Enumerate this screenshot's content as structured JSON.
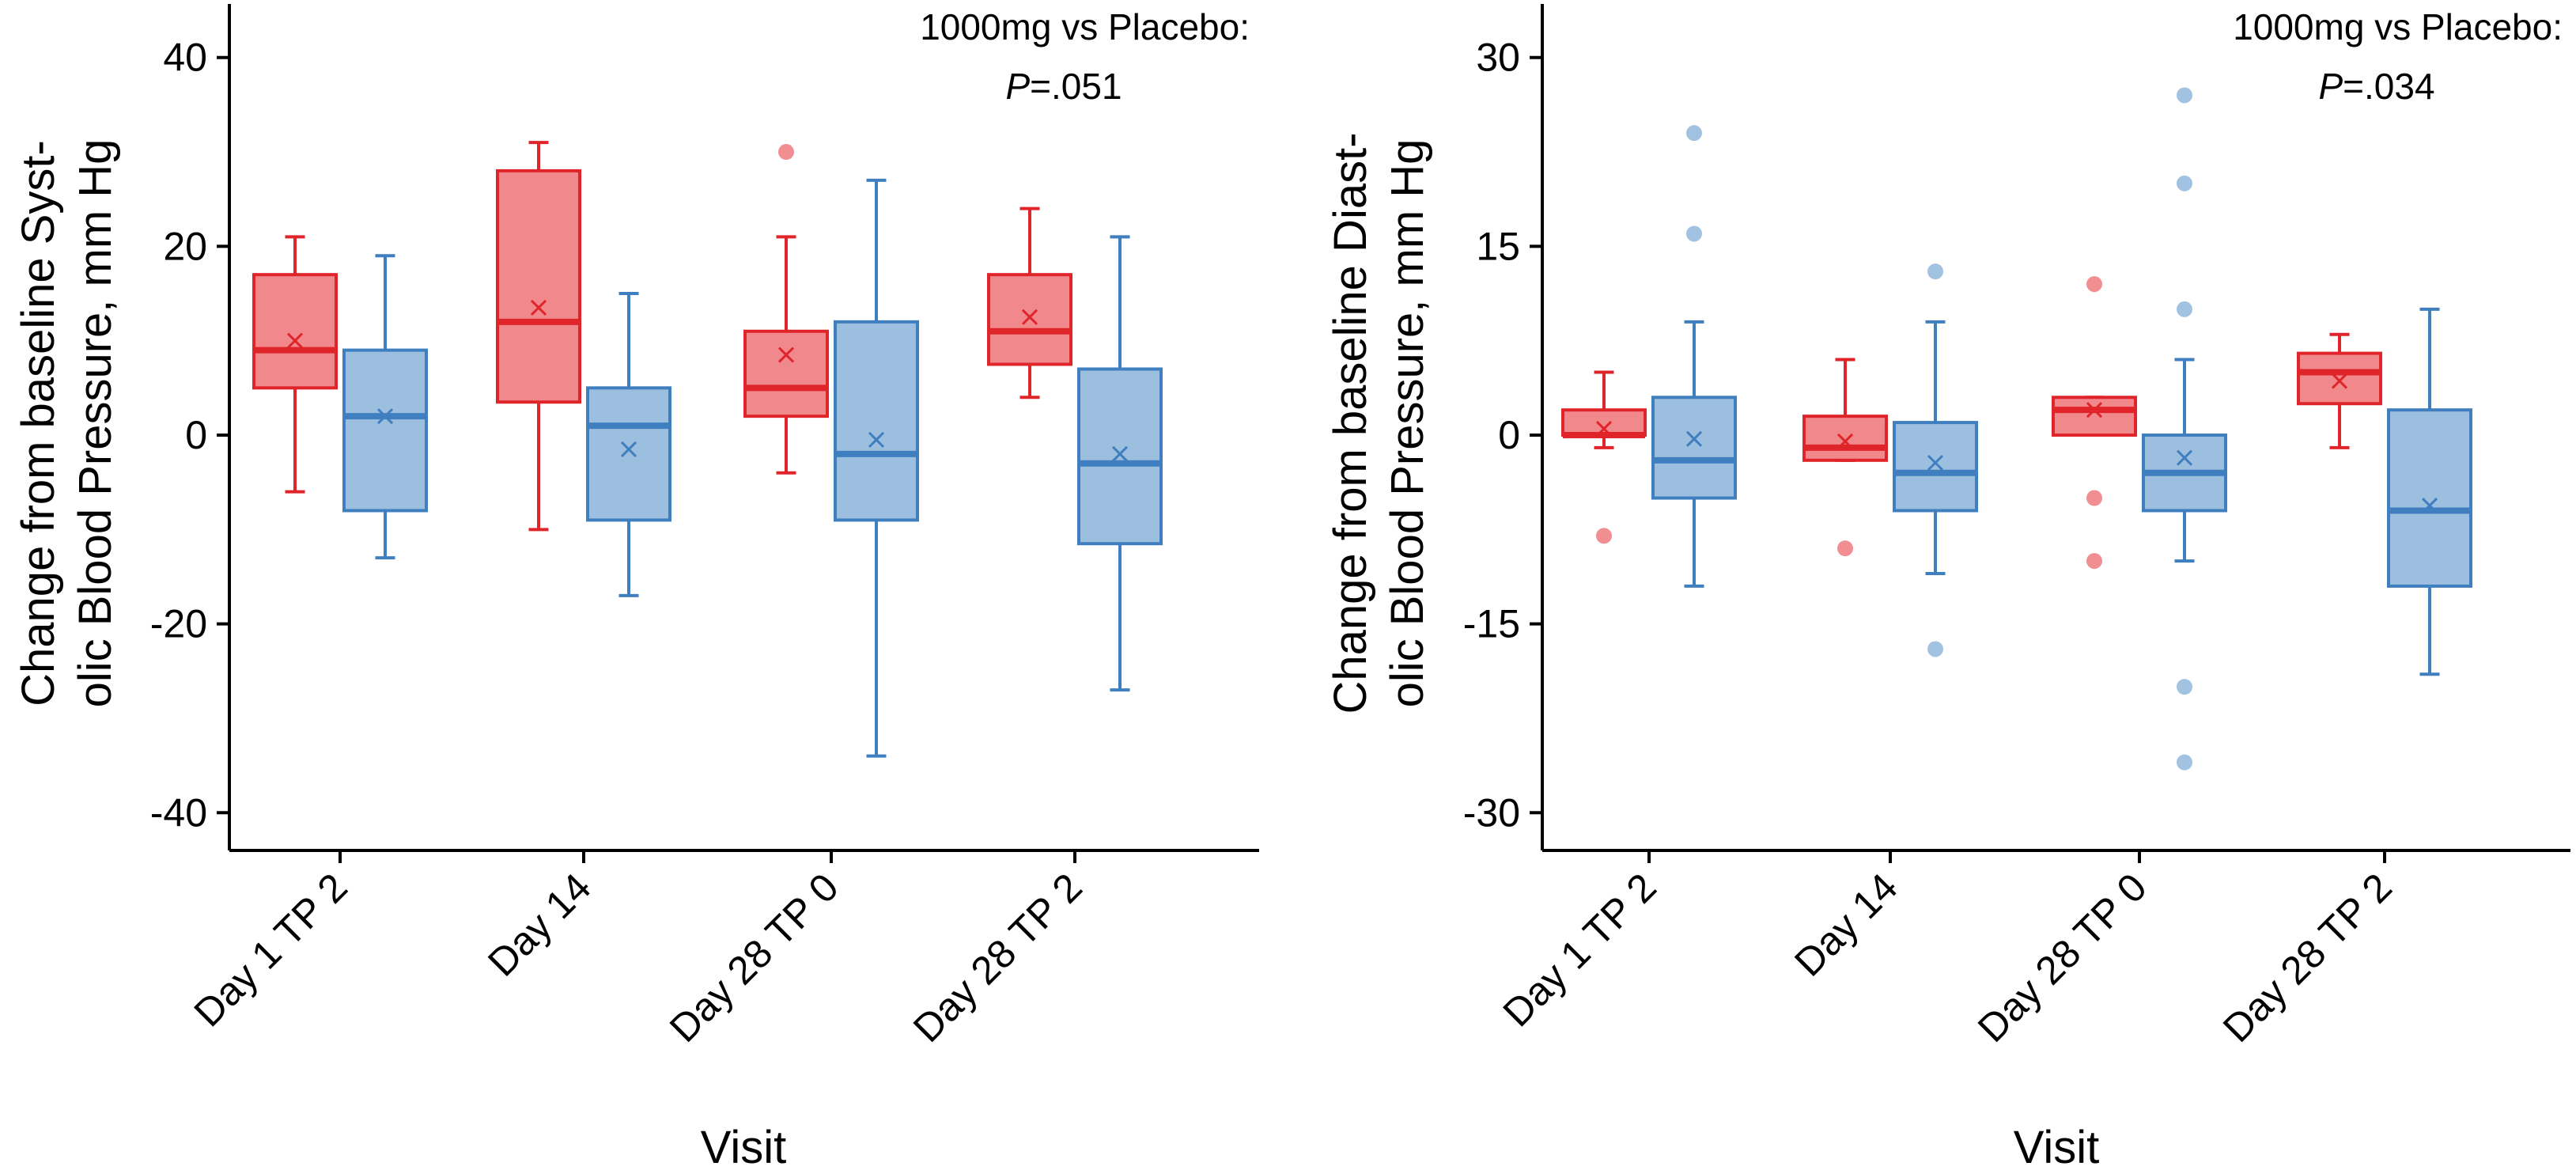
{
  "chart_data": [
    {
      "type": "box",
      "xlabel": "Visit",
      "ylabel_lines": [
        "Change from baseline Syst-",
        "olic Blood Pressure, mm Hg"
      ],
      "ylim": [
        -44,
        44
      ],
      "yticks": [
        40,
        20,
        0,
        -20,
        -40
      ],
      "ytick_labels": [
        "40",
        "20",
        "0",
        "-20",
        "-40"
      ],
      "categories": [
        "Day 1 TP 2",
        "Day 14",
        "Day 28 TP 0",
        "Day 28 TP 2"
      ],
      "annotation": {
        "line1": "1000mg vs Placebo:",
        "p_prefix": "P",
        "p_value": "=.051"
      },
      "colors": {
        "red_fill": "#f0888c",
        "red_line": "#e0252a",
        "blue_fill": "#9dbfdf",
        "blue_line": "#3f7fbf"
      },
      "series": [
        {
          "color": "red",
          "boxes": [
            {
              "q1": 5,
              "median": 9,
              "q3": 17,
              "whisker_low": -6,
              "whisker_high": 21,
              "mean": 10,
              "outliers": []
            },
            {
              "q1": 3.5,
              "median": 12,
              "q3": 28,
              "whisker_low": -10,
              "whisker_high": 31,
              "mean": 13.5,
              "outliers": []
            },
            {
              "q1": 2,
              "median": 5,
              "q3": 11,
              "whisker_low": -4,
              "whisker_high": 21,
              "mean": 8.5,
              "outliers": [
                30
              ]
            },
            {
              "q1": 7.5,
              "median": 11,
              "q3": 17,
              "whisker_low": 4,
              "whisker_high": 24,
              "mean": 12.5,
              "outliers": []
            }
          ]
        },
        {
          "color": "blue",
          "boxes": [
            {
              "q1": -8,
              "median": 2,
              "q3": 9,
              "whisker_low": -13,
              "whisker_high": 19,
              "mean": 2,
              "outliers": []
            },
            {
              "q1": -9,
              "median": 1,
              "q3": 5,
              "whisker_low": -17,
              "whisker_high": 15,
              "mean": -1.5,
              "outliers": []
            },
            {
              "q1": -9,
              "median": -2,
              "q3": 12,
              "whisker_low": -34,
              "whisker_high": 27,
              "mean": -0.5,
              "outliers": []
            },
            {
              "q1": -11.5,
              "median": -3,
              "q3": 7,
              "whisker_low": -27,
              "whisker_high": 21,
              "mean": -2,
              "outliers": []
            }
          ]
        }
      ]
    },
    {
      "type": "box",
      "xlabel": "Visit",
      "ylabel_lines": [
        "Change from baseline Diast-",
        "olic Blood Pressure, mm Hg"
      ],
      "ylim": [
        -33,
        33
      ],
      "yticks": [
        30,
        15,
        0,
        -15,
        -30
      ],
      "ytick_labels": [
        "30",
        "15",
        "0",
        "-15",
        "-30"
      ],
      "categories": [
        "Day 1 TP 2",
        "Day 14",
        "Day 28 TP 0",
        "Day 28 TP 2"
      ],
      "annotation": {
        "line1": "1000mg vs Placebo:",
        "p_prefix": "P",
        "p_value": "=.034"
      },
      "colors": {
        "red_fill": "#f0888c",
        "red_line": "#e0252a",
        "blue_fill": "#9dbfdf",
        "blue_line": "#3f7fbf"
      },
      "series": [
        {
          "color": "red",
          "boxes": [
            {
              "q1": 0,
              "median": 0,
              "q3": 2,
              "whisker_low": -1,
              "whisker_high": 5,
              "mean": 0.5,
              "outliers": [
                -8
              ]
            },
            {
              "q1": -2,
              "median": -1,
              "q3": 1.5,
              "whisker_low": -2,
              "whisker_high": 6,
              "mean": -0.5,
              "outliers": [
                -9
              ]
            },
            {
              "q1": 0,
              "median": 2,
              "q3": 3,
              "whisker_low": 0,
              "whisker_high": 3,
              "mean": 2,
              "outliers": [
                12,
                -5,
                -10
              ]
            },
            {
              "q1": 2.5,
              "median": 5,
              "q3": 6.5,
              "whisker_low": -1,
              "whisker_high": 8,
              "mean": 4.3,
              "outliers": []
            }
          ]
        },
        {
          "color": "blue",
          "boxes": [
            {
              "q1": -5,
              "median": -2,
              "q3": 3,
              "whisker_low": -12,
              "whisker_high": 9,
              "mean": -0.3,
              "outliers": [
                24,
                16
              ]
            },
            {
              "q1": -6,
              "median": -3,
              "q3": 1,
              "whisker_low": -11,
              "whisker_high": 9,
              "mean": -2.2,
              "outliers": [
                13,
                -17
              ]
            },
            {
              "q1": -6,
              "median": -3,
              "q3": 0,
              "whisker_low": -10,
              "whisker_high": 6,
              "mean": -1.8,
              "outliers": [
                27,
                20,
                10,
                -20,
                -26
              ]
            },
            {
              "q1": -12,
              "median": -6,
              "q3": 2,
              "whisker_low": -19,
              "whisker_high": 10,
              "mean": -5.6,
              "outliers": []
            }
          ]
        }
      ]
    }
  ]
}
